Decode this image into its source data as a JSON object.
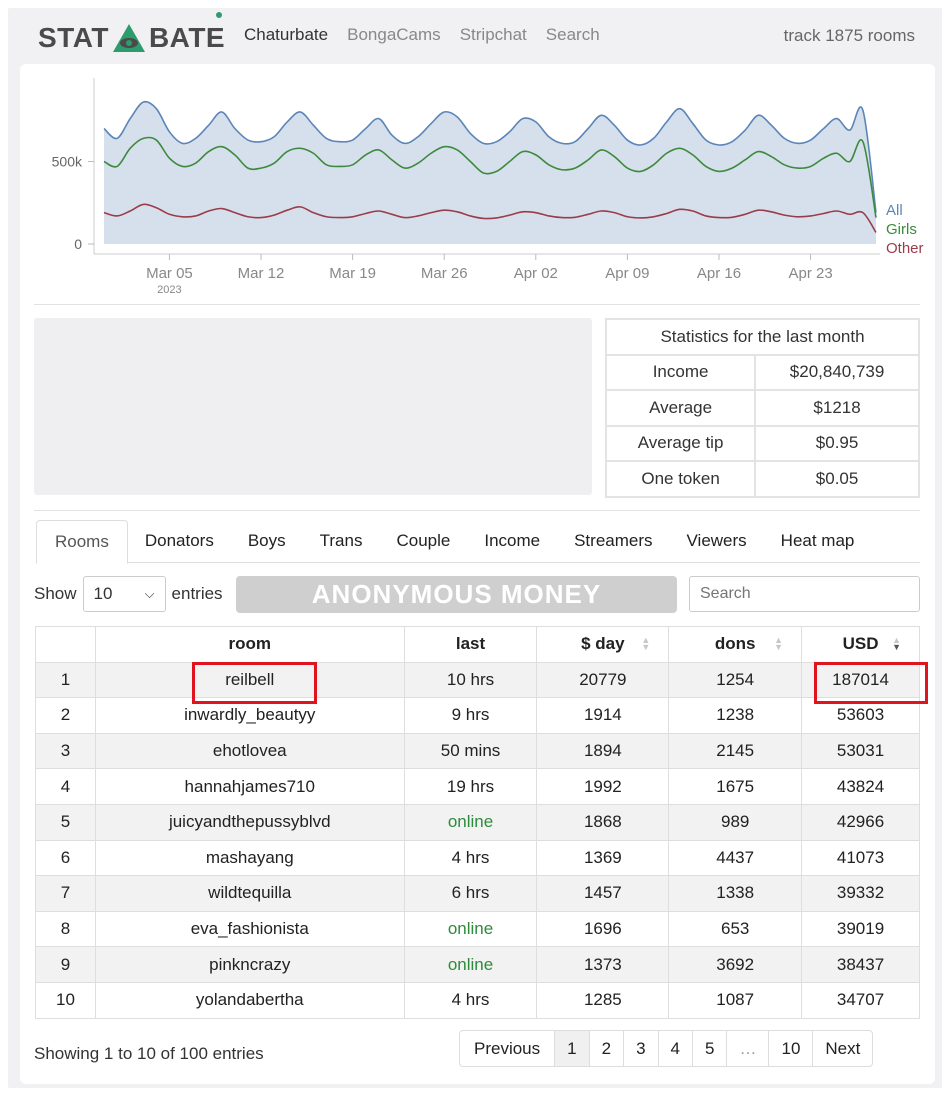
{
  "logo": {
    "left": "STAT",
    "right": "BATE"
  },
  "nav": [
    "Chaturbate",
    "BongaCams",
    "Stripchat",
    "Search"
  ],
  "track_text": "track 1875 rooms",
  "chart_data": {
    "type": "area",
    "x_ticks": [
      "Mar 05",
      "Mar 12",
      "Mar 19",
      "Mar 26",
      "Apr 02",
      "Apr 09",
      "Apr 16",
      "Apr 23"
    ],
    "x_year": "2023",
    "y_ticks": [
      "500k",
      "0"
    ],
    "ylim": [
      0,
      1000000
    ],
    "x_days": [
      0,
      1,
      2,
      3,
      4,
      5,
      6,
      7,
      8,
      9,
      10,
      11,
      12,
      13,
      14,
      15,
      16,
      17,
      18,
      19,
      20,
      21,
      22,
      23,
      24,
      25,
      26,
      27,
      28,
      29,
      30,
      31,
      32,
      33,
      34,
      35,
      36,
      37,
      38,
      39,
      40,
      41,
      42,
      43,
      44,
      45,
      46,
      47,
      48,
      49,
      50,
      51,
      52,
      53,
      54,
      55,
      56,
      57,
      58,
      59
    ],
    "series": [
      {
        "name": "All",
        "color": "#5b85b8",
        "values": [
          700000,
          640000,
          760000,
          860000,
          820000,
          680000,
          610000,
          640000,
          720000,
          800000,
          700000,
          630000,
          620000,
          650000,
          740000,
          800000,
          720000,
          640000,
          620000,
          630000,
          700000,
          760000,
          660000,
          610000,
          650000,
          730000,
          800000,
          770000,
          670000,
          610000,
          620000,
          680000,
          760000,
          740000,
          650000,
          610000,
          620000,
          700000,
          780000,
          720000,
          630000,
          600000,
          640000,
          740000,
          820000,
          730000,
          630000,
          600000,
          620000,
          690000,
          780000,
          720000,
          640000,
          610000,
          630000,
          700000,
          760000,
          690000,
          810000,
          190000
        ]
      },
      {
        "name": "Girls",
        "color": "#3c8a3c",
        "values": [
          500000,
          470000,
          580000,
          640000,
          630000,
          520000,
          470000,
          490000,
          560000,
          590000,
          540000,
          460000,
          460000,
          490000,
          560000,
          580000,
          550000,
          480000,
          470000,
          480000,
          540000,
          570000,
          510000,
          460000,
          490000,
          550000,
          590000,
          570000,
          500000,
          430000,
          440000,
          500000,
          560000,
          540000,
          480000,
          450000,
          460000,
          510000,
          570000,
          530000,
          460000,
          440000,
          480000,
          550000,
          580000,
          540000,
          470000,
          440000,
          460000,
          510000,
          560000,
          530000,
          480000,
          460000,
          470000,
          520000,
          550000,
          500000,
          620000,
          160000
        ]
      },
      {
        "name": "Other",
        "color": "#9b3c4a",
        "values": [
          190000,
          170000,
          200000,
          240000,
          220000,
          180000,
          165000,
          170000,
          200000,
          215000,
          190000,
          165000,
          160000,
          175000,
          205000,
          225000,
          190000,
          165000,
          160000,
          165000,
          185000,
          200000,
          180000,
          160000,
          170000,
          190000,
          205000,
          195000,
          170000,
          155000,
          158000,
          175000,
          195000,
          190000,
          170000,
          160000,
          162000,
          180000,
          200000,
          190000,
          165000,
          158000,
          165000,
          185000,
          210000,
          200000,
          170000,
          160000,
          162000,
          180000,
          205000,
          195000,
          175000,
          165000,
          170000,
          185000,
          200000,
          180000,
          190000,
          70000
        ]
      }
    ],
    "legend": [
      "All",
      "Girls",
      "Other"
    ],
    "legend_placement": "right"
  },
  "stats": {
    "title": "Statistics for the last month",
    "rows": [
      {
        "label": "Income",
        "value": "$20,840,739"
      },
      {
        "label": "Average",
        "value": "$1218"
      },
      {
        "label": "Average tip",
        "value": "$0.95"
      },
      {
        "label": "One token",
        "value": "$0.05"
      }
    ]
  },
  "tabs": [
    "Rooms",
    "Donators",
    "Boys",
    "Trans",
    "Couple",
    "Income",
    "Streamers",
    "Viewers",
    "Heat map"
  ],
  "controls": {
    "show_label": "Show",
    "entries_value": "10",
    "entries_label": "entries",
    "banner": "ANONYMOUS MONEY",
    "search_placeholder": "Search"
  },
  "table": {
    "headers": [
      "",
      "room",
      "last",
      "$ day",
      "dons",
      "USD"
    ],
    "rows": [
      {
        "n": "1",
        "room": "reilbell",
        "last": "10 hrs",
        "day": "20779",
        "dons": "1254",
        "usd": "187014",
        "online": false
      },
      {
        "n": "2",
        "room": "inwardly_beautyy",
        "last": "9 hrs",
        "day": "1914",
        "dons": "1238",
        "usd": "53603",
        "online": false
      },
      {
        "n": "3",
        "room": "ehotlovea",
        "last": "50 mins",
        "day": "1894",
        "dons": "2145",
        "usd": "53031",
        "online": false
      },
      {
        "n": "4",
        "room": "hannahjames710",
        "last": "19 hrs",
        "day": "1992",
        "dons": "1675",
        "usd": "43824",
        "online": false
      },
      {
        "n": "5",
        "room": "juicyandthepussyblvd",
        "last": "online",
        "day": "1868",
        "dons": "989",
        "usd": "42966",
        "online": true
      },
      {
        "n": "6",
        "room": "mashayang",
        "last": "4 hrs",
        "day": "1369",
        "dons": "4437",
        "usd": "41073",
        "online": false
      },
      {
        "n": "7",
        "room": "wildtequilla",
        "last": "6 hrs",
        "day": "1457",
        "dons": "1338",
        "usd": "39332",
        "online": false
      },
      {
        "n": "8",
        "room": "eva_fashionista",
        "last": "online",
        "day": "1696",
        "dons": "653",
        "usd": "39019",
        "online": true
      },
      {
        "n": "9",
        "room": "pinkncrazy",
        "last": "online",
        "day": "1373",
        "dons": "3692",
        "usd": "38437",
        "online": true
      },
      {
        "n": "10",
        "room": "yolandabertha",
        "last": "4 hrs",
        "day": "1285",
        "dons": "1087",
        "usd": "34707",
        "online": false
      }
    ]
  },
  "footer": {
    "showing": "Showing 1 to 10 of 100 entries",
    "pages": [
      "Previous",
      "1",
      "2",
      "3",
      "4",
      "5",
      "…",
      "10",
      "Next"
    ],
    "current_page": "1"
  },
  "colors": {
    "highlight": "#e0141e",
    "online": "#2e8b3c",
    "area_fill": "#d6e0ec"
  }
}
